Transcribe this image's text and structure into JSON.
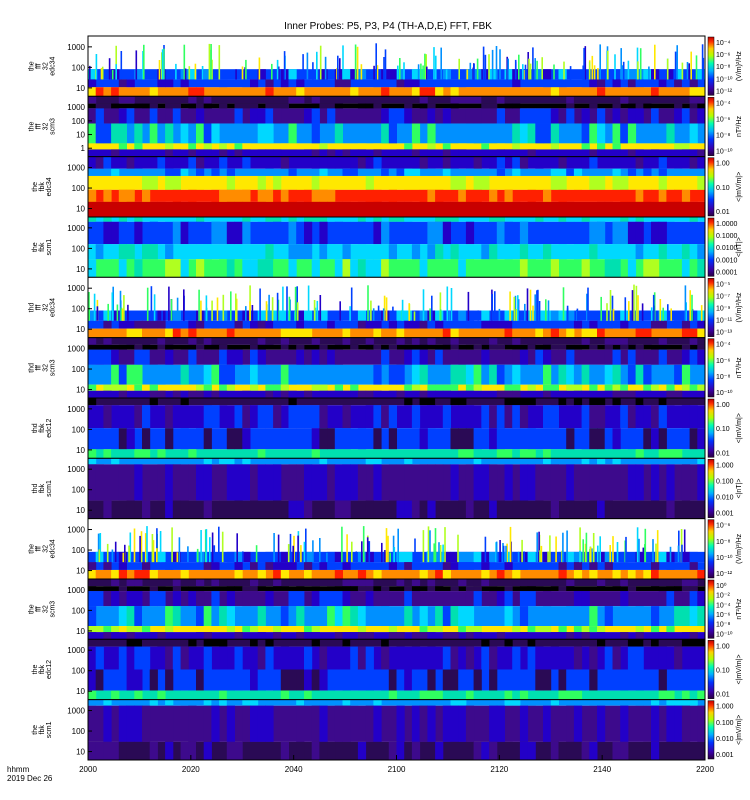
{
  "chart_data": {
    "type": "heatmap",
    "title": "Inner Probes: P5, P3, P4 (TH-A,D,E) FFT, FBK",
    "x_ticks": [
      "2000",
      "2020",
      "2040",
      "2100",
      "2120",
      "2140",
      "2200"
    ],
    "x_label_lines": [
      "hhmm",
      "2019 Dec 26"
    ],
    "panels": [
      {
        "probe": "the",
        "label_lines": [
          "the",
          "fff",
          "32",
          "edc34"
        ],
        "y_ticks": [
          "1000",
          "100",
          "10"
        ],
        "cb_ticks": [
          "10⁻⁴",
          "10⁻⁶",
          "10⁻⁸",
          "10⁻¹⁰",
          "10⁻¹²"
        ],
        "cb_label": "(V/m)²/Hz",
        "style": "edc"
      },
      {
        "probe": "the",
        "label_lines": [
          "the",
          "fff",
          "32",
          "scm3"
        ],
        "y_ticks": [
          "1000",
          "100",
          "10",
          "1"
        ],
        "cb_ticks": [
          "10⁻⁴",
          "10⁻⁶",
          "10⁻⁸",
          "10⁻¹⁰"
        ],
        "cb_label": "nT²/Hz",
        "style": "scm"
      },
      {
        "probe": "the",
        "label_lines": [
          "the",
          "fbk",
          "edc34"
        ],
        "y_ticks": [
          "1000",
          "100",
          "10"
        ],
        "cb_ticks": [
          "1.00",
          "0.10",
          "0.01"
        ],
        "cb_label": "<|mV/m|>",
        "style": "fbk_edc_red"
      },
      {
        "probe": "the",
        "label_lines": [
          "the",
          "fbk",
          "scm1"
        ],
        "y_ticks": [
          "1000",
          "100",
          "10"
        ],
        "cb_ticks": [
          "1.0000",
          "0.1000",
          "0.0100",
          "0.0010",
          "0.0001"
        ],
        "cb_label": "<|nT|>",
        "style": "fbk_scm_bright"
      },
      {
        "probe": "thd",
        "label_lines": [
          "thd",
          "fff",
          "32",
          "edc34"
        ],
        "y_ticks": [
          "1000",
          "100",
          "10"
        ],
        "cb_ticks": [
          "10⁻⁵",
          "10⁻⁷",
          "10⁻⁹",
          "10⁻¹¹",
          "10⁻¹³"
        ],
        "cb_label": "(V/m)²/Hz",
        "style": "edc"
      },
      {
        "probe": "thd",
        "label_lines": [
          "thd",
          "fff",
          "32",
          "scm3"
        ],
        "y_ticks": [
          "1000",
          "100",
          "10"
        ],
        "cb_ticks": [
          "10⁻⁴",
          "10⁻⁶",
          "10⁻⁸",
          "10⁻¹⁰"
        ],
        "cb_label": "nT²/Hz",
        "style": "scm"
      },
      {
        "probe": "thd",
        "label_lines": [
          "thd",
          "fbk",
          "edc12"
        ],
        "y_ticks": [
          "1000",
          "100",
          "10"
        ],
        "cb_ticks": [
          "1.00",
          "0.10",
          "0.01"
        ],
        "cb_label": "<|mV/m|>",
        "style": "fbk_dark"
      },
      {
        "probe": "thd",
        "label_lines": [
          "thd",
          "fbk",
          "scm1"
        ],
        "y_ticks": [
          "1000",
          "100",
          "10"
        ],
        "cb_ticks": [
          "1.000",
          "0.100",
          "0.010",
          "0.001"
        ],
        "cb_label": "<|nT|>",
        "style": "fbk_purple"
      },
      {
        "probe": "the",
        "label_lines": [
          "the",
          "fff",
          "32",
          "edc34"
        ],
        "y_ticks": [
          "1000",
          "100",
          "10"
        ],
        "cb_ticks": [
          "10⁻⁶",
          "10⁻⁸",
          "10⁻¹⁰",
          "10⁻¹²"
        ],
        "cb_label": "(V/m)²/Hz",
        "style": "edc"
      },
      {
        "probe": "the",
        "label_lines": [
          "the",
          "fff",
          "32",
          "scm3"
        ],
        "y_ticks": [
          "1000",
          "100",
          "10"
        ],
        "cb_ticks": [
          "10⁰",
          "10⁻²",
          "10⁻⁴",
          "10⁻⁶",
          "10⁻⁸",
          "10⁻¹⁰"
        ],
        "cb_label": "nT²/Hz",
        "style": "scm"
      },
      {
        "probe": "the",
        "label_lines": [
          "the",
          "fbk",
          "edc12"
        ],
        "y_ticks": [
          "1000",
          "100",
          "10"
        ],
        "cb_ticks": [
          "1.00",
          "0.10",
          "0.01"
        ],
        "cb_label": "<|mV/m|>",
        "style": "fbk_dark"
      },
      {
        "probe": "the",
        "label_lines": [
          "the",
          "fbk",
          "scm1"
        ],
        "y_ticks": [
          "1000",
          "100",
          "10"
        ],
        "cb_ticks": [
          "1.000",
          "0.100",
          "0.010",
          "0.001"
        ],
        "cb_label": "<|mV/m|>",
        "style": "fbk_purple"
      }
    ]
  }
}
